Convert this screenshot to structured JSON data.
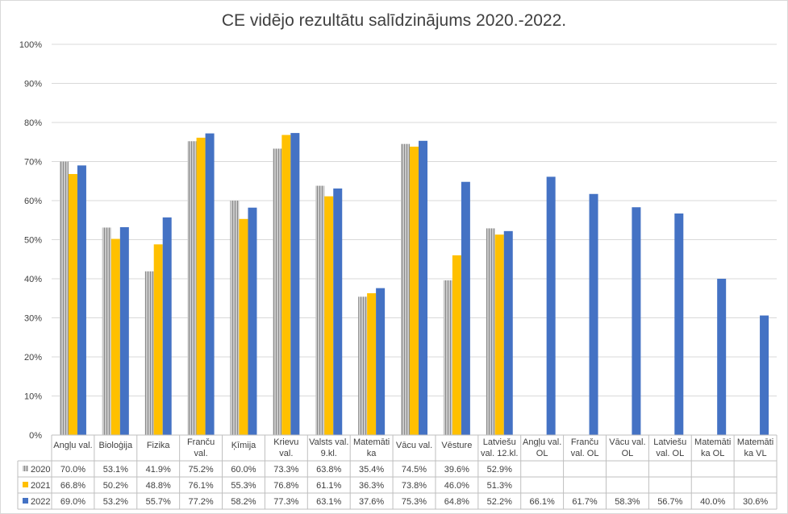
{
  "chart_data": {
    "type": "bar",
    "title": "CE vidējo rezultātu salīdzinājums 2020.-2022.",
    "xlabel": "",
    "ylabel": "",
    "ylim": [
      0,
      100
    ],
    "yticks": [
      "0%",
      "10%",
      "20%",
      "30%",
      "40%",
      "50%",
      "60%",
      "70%",
      "80%",
      "90%",
      "100%"
    ],
    "grid": true,
    "legend": "data-table-left",
    "categories": [
      [
        "Angļu val."
      ],
      [
        "Bioloģija"
      ],
      [
        "Fizika"
      ],
      [
        "Franču",
        "val."
      ],
      [
        "Ķīmija"
      ],
      [
        "Krievu",
        "val."
      ],
      [
        "Valsts val.",
        "9.kl."
      ],
      [
        "Matemāti",
        "ka"
      ],
      [
        "Vācu val."
      ],
      [
        "Vēsture"
      ],
      [
        "Latviešu",
        "val. 12.kl."
      ],
      [
        "Angļu val.",
        "OL"
      ],
      [
        "Franču",
        "val. OL"
      ],
      [
        "Vācu val.",
        "OL"
      ],
      [
        "Latviešu",
        "val. OL"
      ],
      [
        "Matemāti",
        "ka OL"
      ],
      [
        "Matemāti",
        "ka VL"
      ]
    ],
    "series": [
      {
        "name": "2020",
        "color": "#a5a5a5",
        "pattern": "hatched",
        "values": [
          70.0,
          53.1,
          41.9,
          75.2,
          60.0,
          73.3,
          63.8,
          35.4,
          74.5,
          39.6,
          52.9,
          null,
          null,
          null,
          null,
          null,
          null
        ],
        "labels": [
          "70.0%",
          "53.1%",
          "41.9%",
          "75.2%",
          "60.0%",
          "73.3%",
          "63.8%",
          "35.4%",
          "74.5%",
          "39.6%",
          "52.9%",
          "",
          "",
          "",
          "",
          "",
          ""
        ]
      },
      {
        "name": "2021",
        "color": "#ffc000",
        "pattern": "solid",
        "values": [
          66.8,
          50.2,
          48.8,
          76.1,
          55.3,
          76.8,
          61.1,
          36.3,
          73.8,
          46.0,
          51.3,
          null,
          null,
          null,
          null,
          null,
          null
        ],
        "labels": [
          "66.8%",
          "50.2%",
          "48.8%",
          "76.1%",
          "55.3%",
          "76.8%",
          "61.1%",
          "36.3%",
          "73.8%",
          "46.0%",
          "51.3%",
          "",
          "",
          "",
          "",
          "",
          ""
        ]
      },
      {
        "name": "2022",
        "color": "#4472c4",
        "pattern": "solid",
        "values": [
          69.0,
          53.2,
          55.7,
          77.2,
          58.2,
          77.3,
          63.1,
          37.6,
          75.3,
          64.8,
          52.2,
          66.1,
          61.7,
          58.3,
          56.7,
          40.0,
          30.6
        ],
        "labels": [
          "69.0%",
          "53.2%",
          "55.7%",
          "77.2%",
          "58.2%",
          "77.3%",
          "63.1%",
          "37.6%",
          "75.3%",
          "64.8%",
          "52.2%",
          "66.1%",
          "61.7%",
          "58.3%",
          "56.7%",
          "40.0%",
          "30.6%"
        ]
      }
    ]
  }
}
